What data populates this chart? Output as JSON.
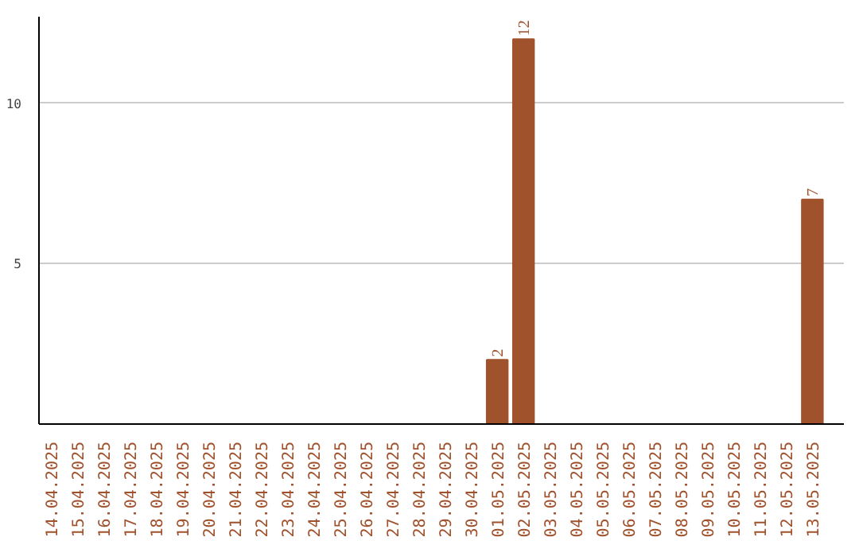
{
  "chart_data": {
    "type": "bar",
    "categories": [
      "14.04.2025",
      "15.04.2025",
      "16.04.2025",
      "17.04.2025",
      "18.04.2025",
      "19.04.2025",
      "20.04.2025",
      "21.04.2025",
      "22.04.2025",
      "23.04.2025",
      "24.04.2025",
      "25.04.2025",
      "26.04.2025",
      "27.04.2025",
      "28.04.2025",
      "29.04.2025",
      "30.04.2025",
      "01.05.2025",
      "02.05.2025",
      "03.05.2025",
      "04.05.2025",
      "05.05.2025",
      "06.05.2025",
      "07.05.2025",
      "08.05.2025",
      "09.05.2025",
      "10.05.2025",
      "11.05.2025",
      "12.05.2025",
      "13.05.2025"
    ],
    "values": [
      0,
      0,
      0,
      0,
      0,
      0,
      0,
      0,
      0,
      0,
      0,
      0,
      0,
      0,
      0,
      0,
      0,
      2,
      12,
      0,
      0,
      0,
      0,
      0,
      0,
      0,
      0,
      0,
      0,
      7
    ],
    "value_labels": [
      null,
      null,
      null,
      null,
      null,
      null,
      null,
      null,
      null,
      null,
      null,
      null,
      null,
      null,
      null,
      null,
      null,
      "2",
      "12",
      null,
      null,
      null,
      null,
      null,
      null,
      null,
      null,
      null,
      null,
      "7"
    ],
    "color": "#a0522d",
    "ylim": [
      0,
      12.7
    ],
    "yticks": [
      5,
      10
    ],
    "grid": "y"
  }
}
